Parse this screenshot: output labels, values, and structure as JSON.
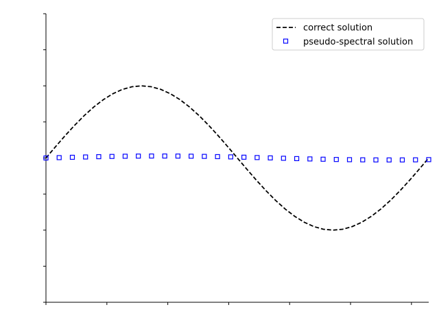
{
  "chart_data": {
    "type": "line",
    "x": [
      0.0,
      0.2166,
      0.4333,
      0.6499,
      0.8666,
      1.0832,
      1.2999,
      1.5165,
      1.7332,
      1.9498,
      2.1665,
      2.3831,
      2.5998,
      2.8164,
      3.0331,
      3.2497,
      3.4664,
      3.683,
      3.8997,
      4.1163,
      4.333,
      4.5496,
      4.7663,
      4.9829,
      5.1996,
      5.4162,
      5.6329,
      5.8495,
      6.0662,
      6.2832
    ],
    "series": [
      {
        "name": "correct solution",
        "style": "dashed",
        "color": "#000000",
        "x": [
          0.0,
          0.1571,
          0.3142,
          0.4712,
          0.6283,
          0.7854,
          0.9425,
          1.0996,
          1.2566,
          1.4137,
          1.5708,
          1.7279,
          1.885,
          2.042,
          2.1991,
          2.3562,
          2.5133,
          2.6704,
          2.8274,
          2.9845,
          3.1416,
          3.2987,
          3.4558,
          3.6128,
          3.7699,
          3.927,
          4.0841,
          4.2412,
          4.3982,
          4.5553,
          4.7124,
          4.8695,
          5.0265,
          5.1836,
          5.3407,
          5.4978,
          5.6549,
          5.8119,
          5.969,
          6.1261,
          6.2832
        ],
        "values": [
          0.0,
          0.1564,
          0.309,
          0.454,
          0.5878,
          0.7071,
          0.809,
          0.891,
          0.9511,
          0.9877,
          1.0,
          0.9877,
          0.9511,
          0.891,
          0.809,
          0.7071,
          0.5878,
          0.454,
          0.309,
          0.1564,
          0.0,
          -0.1564,
          -0.309,
          -0.454,
          -0.5878,
          -0.7071,
          -0.809,
          -0.891,
          -0.9511,
          -0.9877,
          -1.0,
          -0.9877,
          -0.9511,
          -0.891,
          -0.809,
          -0.7071,
          -0.5878,
          -0.454,
          -0.309,
          -0.1564,
          0.0
        ]
      },
      {
        "name": "pseudo-spectral solution",
        "style": "markers",
        "marker": "square-open",
        "color": "#0000ff",
        "values": [
          0.0,
          0.0049,
          0.0097,
          0.0141,
          0.0182,
          0.0216,
          0.0243,
          0.0262,
          0.0272,
          0.0273,
          0.0265,
          0.0248,
          0.0223,
          0.0191,
          0.0152,
          0.0108,
          0.0061,
          0.0011,
          -0.0038,
          -0.0086,
          -0.0131,
          -0.0171,
          -0.0206,
          -0.0234,
          -0.0255,
          -0.0268,
          -0.0272,
          -0.0269,
          -0.0257,
          -0.0226
        ]
      }
    ],
    "title": "",
    "xlabel": "",
    "ylabel": "",
    "xlim": [
      0,
      6.2832
    ],
    "ylim": [
      -2,
      2
    ],
    "xticks": [
      0,
      1,
      2,
      3,
      4,
      5,
      6
    ],
    "yticks": [
      -2,
      -1.5,
      -1,
      -0.5,
      0,
      0.5,
      1,
      1.5,
      2
    ],
    "tick_labels_visible": false,
    "grid": false,
    "spines": [
      "left",
      "bottom"
    ],
    "legend": "top-right"
  }
}
